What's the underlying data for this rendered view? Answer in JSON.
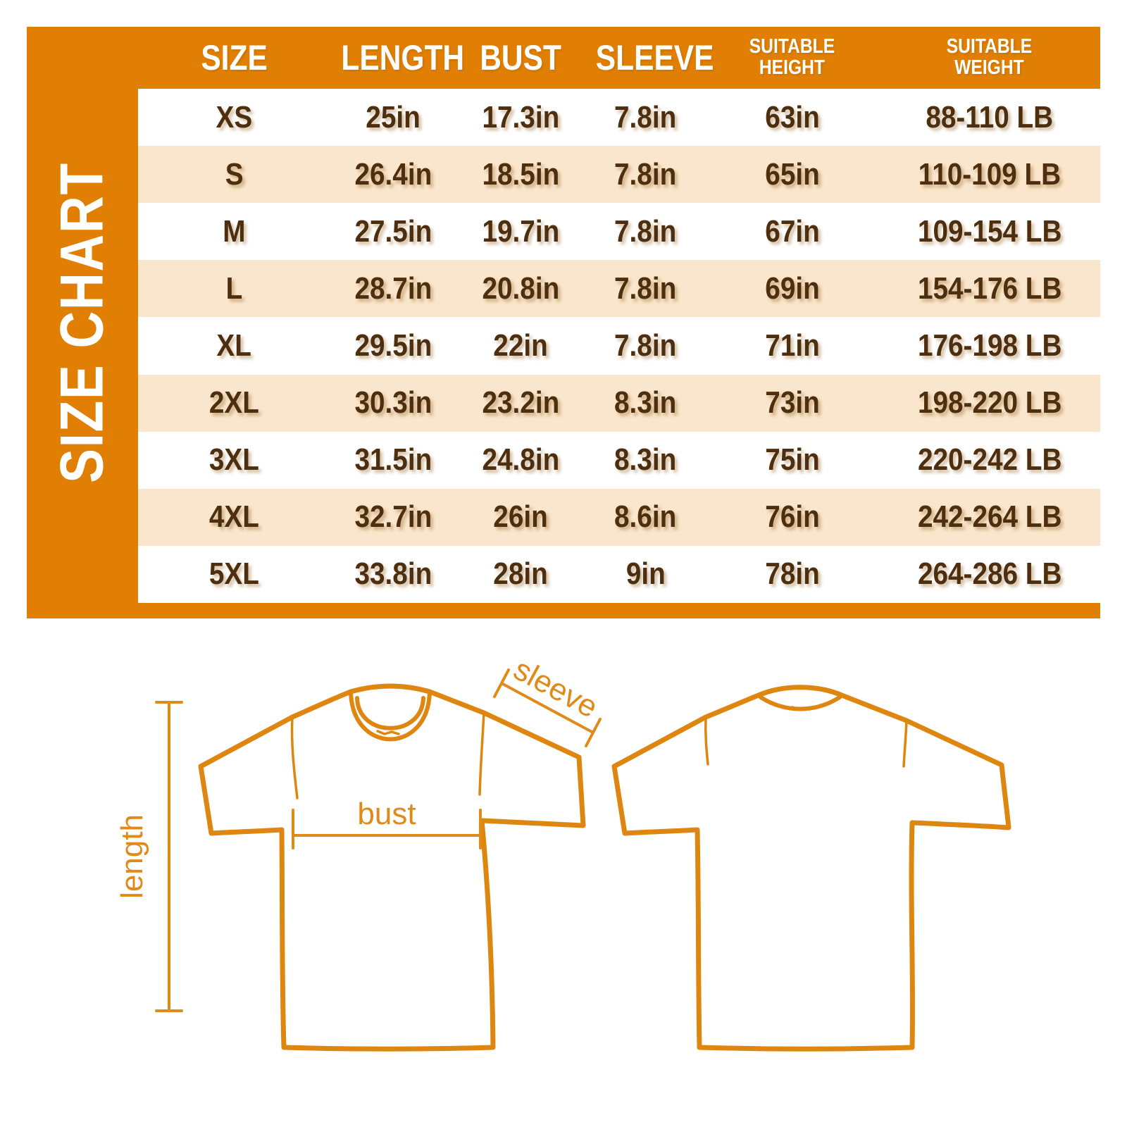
{
  "page": {
    "background_color": "#FFFFFF"
  },
  "panel": {
    "title": "SIZE CHART",
    "colors": {
      "orange": "#E07F04",
      "row_peach": "#FAE6CC",
      "row_white": "#FFFFFF",
      "text_brown": "#4D2E0F",
      "header_text": "#FFFFFF",
      "outline_orange": "#DE860F"
    }
  },
  "chart_data": {
    "type": "table",
    "title": "SIZE CHART",
    "columns": [
      "SIZE",
      "LENGTH",
      "BUST",
      "SLEEVE",
      "SUITABLE\nHEIGHT",
      "SUITABLE\nWEIGHT"
    ],
    "rows": [
      [
        "XS",
        "25in",
        "17.3in",
        "7.8in",
        "63in",
        "88-110 LB"
      ],
      [
        "S",
        "26.4in",
        "18.5in",
        "7.8in",
        "65in",
        "110-109 LB"
      ],
      [
        "M",
        "27.5in",
        "19.7in",
        "7.8in",
        "67in",
        "109-154 LB"
      ],
      [
        "L",
        "28.7in",
        "20.8in",
        "7.8in",
        "69in",
        "154-176 LB"
      ],
      [
        "XL",
        "29.5in",
        "22in",
        "7.8in",
        "71in",
        "176-198 LB"
      ],
      [
        "2XL",
        "30.3in",
        "23.2in",
        "8.3in",
        "73in",
        "198-220 LB"
      ],
      [
        "3XL",
        "31.5in",
        "24.8in",
        "8.3in",
        "75in",
        "220-242 LB"
      ],
      [
        "4XL",
        "32.7in",
        "26in",
        "8.6in",
        "76in",
        "242-264 LB"
      ],
      [
        "5XL",
        "33.8in",
        "28in",
        "9in",
        "78in",
        "264-286 LB"
      ]
    ]
  },
  "diagram": {
    "length_label": "length",
    "bust_label": "bust",
    "sleeve_label": "sleeve"
  }
}
